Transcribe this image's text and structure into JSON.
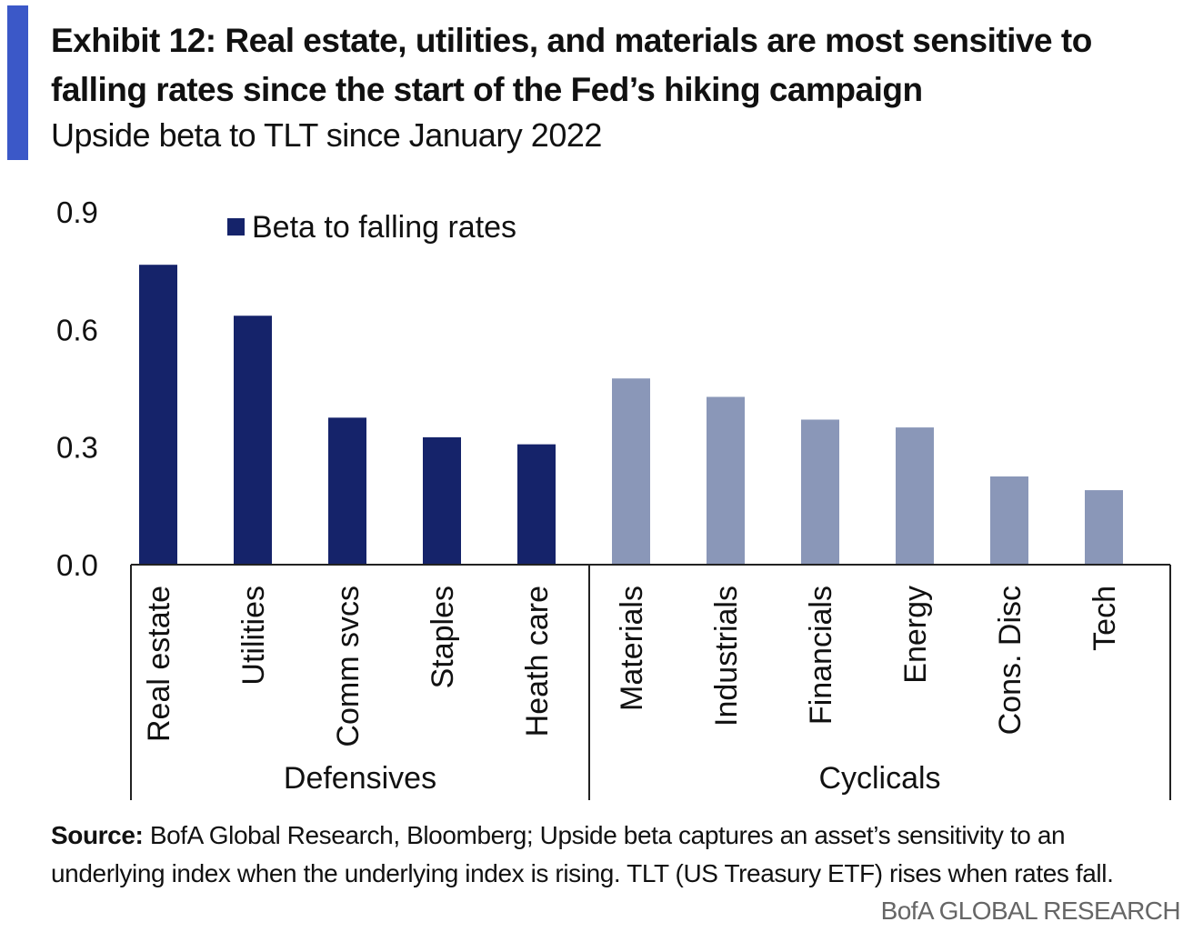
{
  "header": {
    "title": "Exhibit 12: Real estate, utilities, and materials are most sensitive to falling rates since the start of the Fed’s hiking campaign",
    "subtitle": "Upside beta to TLT since January 2022",
    "accent_color": "#3b58c8"
  },
  "chart_data": {
    "type": "bar",
    "title": "Exhibit 12: Real estate, utilities, and materials are most sensitive to falling rates since the start of the Fed’s hiking campaign",
    "subtitle": "Upside beta to TLT since January 2022",
    "xlabel": "",
    "ylabel": "",
    "ylim": [
      0,
      0.9
    ],
    "yticks": [
      "0.0",
      "0.3",
      "0.6",
      "0.9"
    ],
    "grid": false,
    "legend": {
      "label": "Beta to falling rates",
      "position": "top-left"
    },
    "categories": [
      "Real estate",
      "Utilities",
      "Comm svcs",
      "Staples",
      "Heath care",
      "Materials",
      "Industrials",
      "Financials",
      "Energy",
      "Cons. Disc",
      "Tech"
    ],
    "values": [
      0.765,
      0.635,
      0.375,
      0.325,
      0.307,
      0.475,
      0.428,
      0.37,
      0.35,
      0.225,
      0.19
    ],
    "groups": [
      {
        "name": "Defensives",
        "count": 5,
        "color": "#15236a"
      },
      {
        "name": "Cyclicals",
        "count": 6,
        "color": "#8a97b8"
      }
    ]
  },
  "footer": {
    "source_label": "Source:",
    "source_text": " BofA Global Research, Bloomberg; Upside beta captures an asset’s sensitivity to an underlying index when the underlying index is rising. TLT (US Treasury ETF) rises when rates fall.",
    "brand": "BofA GLOBAL RESEARCH"
  }
}
